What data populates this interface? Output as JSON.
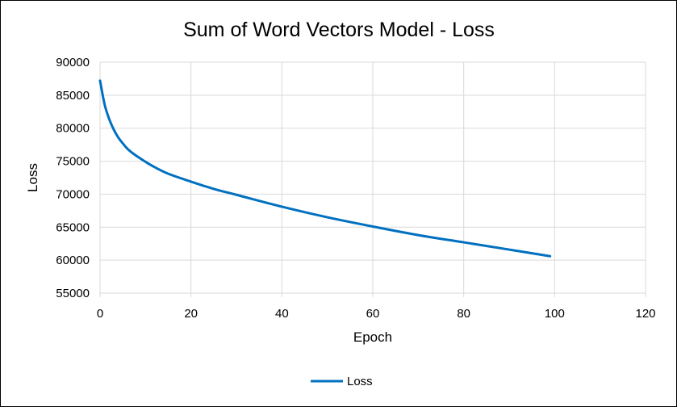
{
  "chart_data": {
    "type": "line",
    "title": "Sum of Word Vectors Model - Loss",
    "xlabel": "Epoch",
    "ylabel": "Loss",
    "xlim": [
      0,
      120
    ],
    "ylim": [
      55000,
      90000
    ],
    "xticks": [
      "0",
      "20",
      "40",
      "60",
      "80",
      "100",
      "120"
    ],
    "yticks": [
      "55000",
      "60000",
      "65000",
      "70000",
      "75000",
      "80000",
      "85000",
      "90000"
    ],
    "grid": true,
    "legend_position": "bottom",
    "series": [
      {
        "name": "Loss",
        "color": "#0070c0",
        "x": [
          0,
          1,
          2,
          3,
          4,
          5,
          6,
          7,
          8,
          10,
          12,
          15,
          20,
          25,
          30,
          40,
          50,
          60,
          70,
          80,
          90,
          99
        ],
        "y": [
          87200,
          83600,
          81400,
          79800,
          78600,
          77700,
          76900,
          76300,
          75800,
          74900,
          74100,
          73100,
          71900,
          70800,
          69900,
          68100,
          66500,
          65100,
          63800,
          62700,
          61600,
          60600
        ]
      }
    ]
  }
}
